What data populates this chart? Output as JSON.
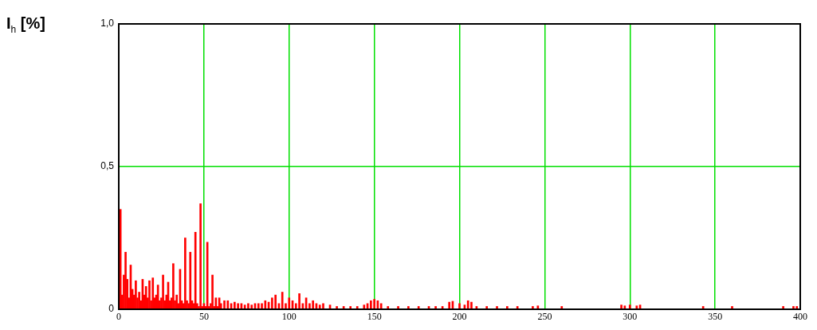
{
  "chart_data": {
    "type": "bar",
    "ylabel": "I$_{h}$ [%]",
    "x": [
      1,
      2,
      3,
      4,
      5,
      6,
      7,
      8,
      9,
      10,
      11,
      12,
      13,
      14,
      15,
      16,
      17,
      18,
      19,
      20,
      21,
      22,
      23,
      24,
      25,
      26,
      27,
      28,
      29,
      30,
      31,
      32,
      33,
      34,
      35,
      36,
      37,
      38,
      39,
      40,
      41,
      42,
      43,
      44,
      45,
      46,
      47,
      48,
      49,
      50,
      51,
      52,
      53,
      54,
      55,
      56,
      57,
      58,
      59,
      60,
      62,
      64,
      66,
      68,
      70,
      72,
      74,
      76,
      78,
      80,
      82,
      84,
      86,
      88,
      90,
      92,
      94,
      96,
      98,
      100,
      102,
      104,
      106,
      108,
      110,
      112,
      114,
      116,
      118,
      120,
      124,
      128,
      132,
      136,
      140,
      144,
      146,
      148,
      150,
      152,
      154,
      158,
      164,
      170,
      176,
      182,
      186,
      190,
      194,
      196,
      200,
      203,
      205,
      207,
      210,
      216,
      222,
      228,
      234,
      243,
      246,
      260,
      295,
      297,
      300,
      304,
      306,
      343,
      360,
      390,
      396,
      398
    ],
    "series": [
      {
        "color": "#ff0000",
        "values": [
          0.35,
          0.05,
          0.12,
          0.2,
          0.105,
          0.04,
          0.155,
          0.07,
          0.05,
          0.1,
          0.04,
          0.06,
          0.03,
          0.105,
          0.05,
          0.08,
          0.04,
          0.1,
          0.03,
          0.11,
          0.04,
          0.05,
          0.085,
          0.03,
          0.04,
          0.12,
          0.03,
          0.05,
          0.095,
          0.03,
          0.04,
          0.16,
          0.03,
          0.05,
          0.02,
          0.14,
          0.03,
          0.02,
          0.25,
          0.03,
          0.02,
          0.2,
          0.03,
          0.02,
          0.27,
          0.02,
          0.01,
          0.37,
          0.01,
          0.02,
          0.01,
          0.235,
          0.01,
          0.02,
          0.12,
          0.01,
          0.04,
          0.01,
          0.04,
          0.02,
          0.03,
          0.03,
          0.02,
          0.025,
          0.02,
          0.02,
          0.015,
          0.02,
          0.015,
          0.02,
          0.02,
          0.02,
          0.03,
          0.025,
          0.04,
          0.05,
          0.02,
          0.06,
          0.02,
          0.04,
          0.03,
          0.02,
          0.055,
          0.02,
          0.04,
          0.02,
          0.03,
          0.02,
          0.015,
          0.02,
          0.015,
          0.01,
          0.01,
          0.01,
          0.01,
          0.015,
          0.02,
          0.03,
          0.035,
          0.03,
          0.02,
          0.01,
          0.01,
          0.01,
          0.01,
          0.01,
          0.01,
          0.01,
          0.025,
          0.028,
          0.02,
          0.015,
          0.03,
          0.025,
          0.01,
          0.01,
          0.01,
          0.01,
          0.01,
          0.01,
          0.012,
          0.01,
          0.015,
          0.012,
          0.015,
          0.012,
          0.015,
          0.01,
          0.01,
          0.01,
          0.01,
          0.01
        ]
      }
    ],
    "xlim": [
      0,
      400
    ],
    "xticks": [
      0,
      50,
      100,
      150,
      200,
      250,
      300,
      350,
      400
    ],
    "ylim": [
      0,
      1
    ],
    "yticks": [
      {
        "value": 0,
        "label": "0"
      },
      {
        "value": 0.5,
        "label": "0,5"
      },
      {
        "value": 1,
        "label": "1,0"
      }
    ],
    "grid": true
  }
}
